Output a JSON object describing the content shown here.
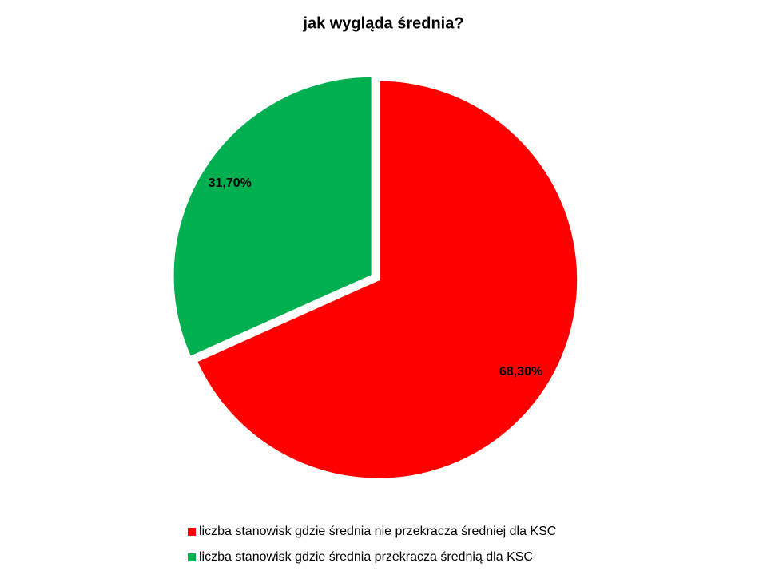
{
  "chart_data": {
    "type": "pie",
    "title": "jak wygląda średnia?",
    "categories": [
      "liczba stanowisk gdzie średnia nie przekracza średniej dla KSC",
      "liczba stanowisk gdzie średnia przekracza średnią dla KSC"
    ],
    "values": [
      68.3,
      31.7
    ],
    "value_labels": [
      "68,30%",
      "31,70%"
    ],
    "colors": [
      "#ff0000",
      "#00b050"
    ]
  }
}
